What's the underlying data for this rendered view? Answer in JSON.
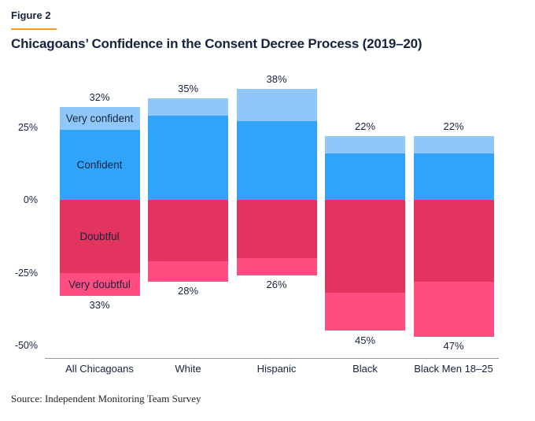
{
  "figure_label": "Figure 2",
  "title": "Chicagoans’ Confidence in the Consent Decree Process (2019–20)",
  "source": "Source: Independent Monitoring Team Survey",
  "colors": {
    "very_confident": "#8FC7F8",
    "confident": "#2FA4F8",
    "doubtful": "#E2345F",
    "very_doubtful": "#FF4D82",
    "accent_underline": "#F59A23",
    "text_navy": "#16233E",
    "axis_line": "#979797"
  },
  "chart_data": {
    "type": "bar",
    "subtype": "diverging-stacked-vertical",
    "title": "Chicagoans’ Confidence in the Consent Decree Process (2019–20)",
    "categories": [
      "All Chicagoans",
      "White",
      "Hispanic",
      "Black",
      "Black Men 18–25"
    ],
    "series": [
      {
        "name": "Very confident",
        "direction": "up",
        "color": "#8FC7F8",
        "values": [
          8,
          6,
          11,
          6,
          6
        ]
      },
      {
        "name": "Confident",
        "direction": "up",
        "color": "#2FA4F8",
        "values": [
          24,
          29,
          27,
          16,
          16
        ]
      },
      {
        "name": "Doubtful",
        "direction": "down",
        "color": "#E2345F",
        "values": [
          25,
          21,
          20,
          32,
          28
        ]
      },
      {
        "name": "Very doubtful",
        "direction": "down",
        "color": "#FF4D82",
        "values": [
          8,
          7,
          6,
          13,
          19
        ]
      }
    ],
    "totals_positive": [
      "32%",
      "35%",
      "38%",
      "22%",
      "22%"
    ],
    "totals_negative": [
      "33%",
      "28%",
      "26%",
      "45%",
      "47%"
    ],
    "segment_labels_on_first_bar": [
      "Very confident",
      "Confident",
      "Doubtful",
      "Very doubtful"
    ],
    "y_ticks": [
      {
        "label": "25%",
        "value": 25
      },
      {
        "label": "0%",
        "value": 0
      },
      {
        "label": "-25%",
        "value": -25
      },
      {
        "label": "-50%",
        "value": -50
      }
    ],
    "ylim": [
      -52,
      40
    ],
    "grid": false,
    "legend_position": "labels-inside-first-bar",
    "xlabel": "",
    "ylabel": ""
  }
}
